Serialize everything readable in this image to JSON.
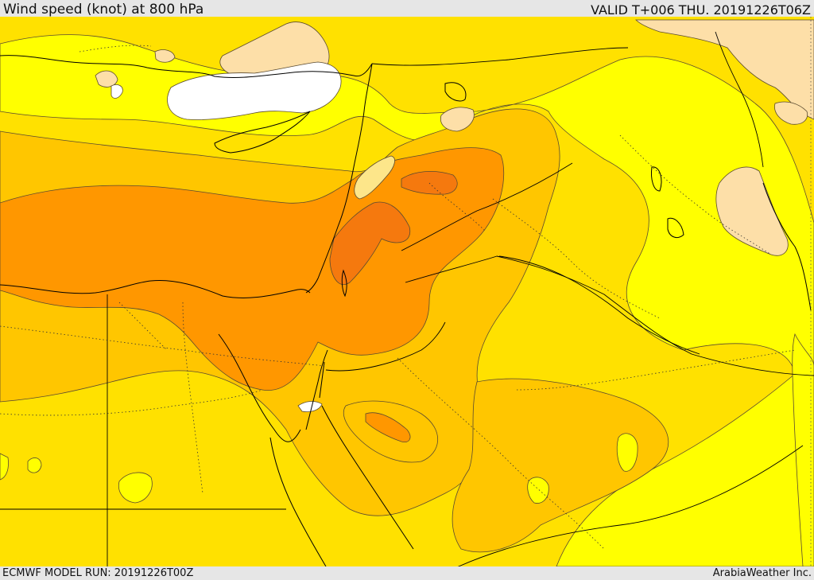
{
  "header": {
    "title": "Wind speed (knot) at 800 hPa",
    "valid": "VALID T+006 THU. 20191226T06Z"
  },
  "footer": {
    "model_run": "ECMWF MODEL RUN: 20191226T00Z",
    "credit": "ArabiaWeather Inc."
  },
  "map": {
    "region": "Eastern Mediterranean, Levant, Egypt, Red Sea",
    "palette": {
      "calm": "#ffffff",
      "light": "#fddfa8",
      "low": "#ffff00",
      "moderate": "#ffe100",
      "fresh": "#ffc600",
      "strong": "#ffaa00",
      "very_strong": "#ff9700",
      "gale": "#f5790e",
      "contour_line": "#5a4a30",
      "coastline": "#000000"
    }
  }
}
